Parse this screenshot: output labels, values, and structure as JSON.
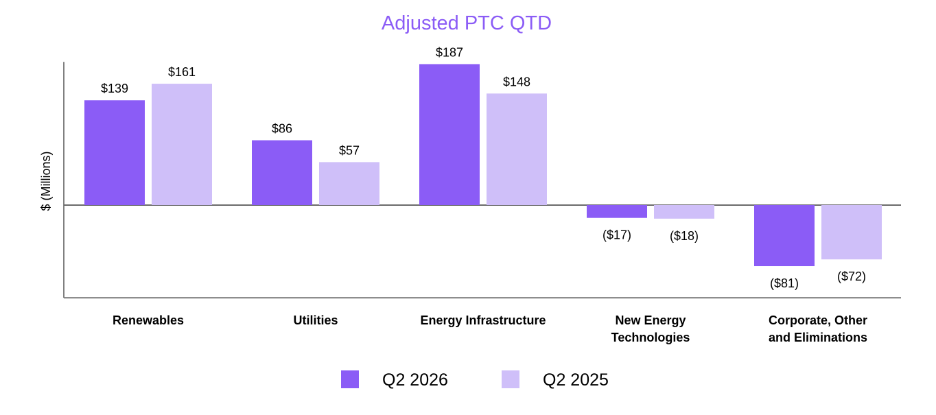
{
  "chart_data": {
    "type": "bar",
    "title": "Adjusted PTC QTD",
    "ylabel": "$ (Millions)",
    "xlabel": "",
    "categories": [
      [
        "Renewables"
      ],
      [
        "Utilities"
      ],
      [
        "Energy Infrastructure"
      ],
      [
        "New Energy",
        "Technologies"
      ],
      [
        "Corporate, Other",
        "and Eliminations"
      ]
    ],
    "series": [
      {
        "name": "Q2 2026",
        "color": "#8b5cf6",
        "values": [
          139,
          86,
          187,
          -17,
          -81
        ],
        "labels": [
          "$139",
          "$86",
          "$187",
          "($17)",
          "($81)"
        ]
      },
      {
        "name": "Q2 2025",
        "color": "#cfbff9",
        "values": [
          161,
          57,
          148,
          -18,
          -72
        ],
        "labels": [
          "$161",
          "$57",
          "$148",
          "($18)",
          "($72)"
        ]
      }
    ],
    "ylim": [
      -123,
      190
    ],
    "grid": false,
    "legend_position": "bottom",
    "title_color": "#8b5cf6"
  }
}
